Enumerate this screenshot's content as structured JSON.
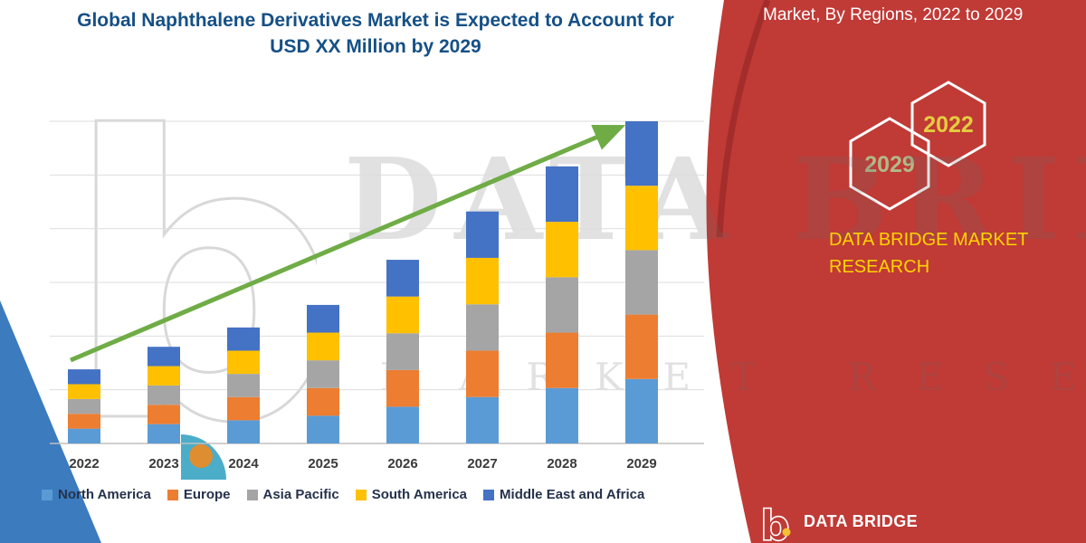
{
  "title": {
    "line1": "Global Naphthalene Derivatives Market is Expected to Account for",
    "line2": "USD XX Million by 2029"
  },
  "side_panel": {
    "heading": "Market, By Regions, 2022 to 2029",
    "hexagon_years": [
      "2029",
      "2022"
    ],
    "brand_lines": [
      "DATA BRIDGE MARKET",
      "RESEARCH"
    ],
    "footer_brand": "DATA BRIDGE",
    "logo_glyph": "b",
    "panel_color": "#C03A36",
    "accent_yellow": "#FFD400",
    "hexagon_2029_color": "#B0B98A",
    "hexagon_2022_color": "#E4CD3F"
  },
  "watermark": {
    "brand": "DATA BRIDGE",
    "sub": "MARKET RESEARCH",
    "logo_glyph": "b"
  },
  "chart_data": {
    "type": "bar",
    "stacked": true,
    "title": "Global Naphthalene Derivatives Market is Expected to Account for USD XX Million by 2029",
    "categories": [
      "2022",
      "2023",
      "2024",
      "2025",
      "2026",
      "2027",
      "2028",
      "2029"
    ],
    "series": [
      {
        "name": "North America",
        "color": "#5B9BD5",
        "values": [
          4.6,
          6,
          7.2,
          8.6,
          11.4,
          14.4,
          17.2,
          20
        ]
      },
      {
        "name": "Europe",
        "color": "#ED7D31",
        "values": [
          4.6,
          6,
          7.2,
          8.6,
          11.4,
          14.4,
          17.2,
          20
        ]
      },
      {
        "name": "Asia Pacific",
        "color": "#A5A5A5",
        "values": [
          4.6,
          6,
          7.2,
          8.6,
          11.4,
          14.4,
          17.2,
          20
        ]
      },
      {
        "name": "South America",
        "color": "#FFC000",
        "values": [
          4.6,
          6,
          7.2,
          8.6,
          11.4,
          14.4,
          17.2,
          20
        ]
      },
      {
        "name": "Middle East and Africa",
        "color": "#4472C4",
        "values": [
          4.6,
          6,
          7.2,
          8.6,
          11.4,
          14.4,
          17.2,
          20
        ]
      }
    ],
    "totals": [
      23,
      30,
      36,
      43,
      57,
      72,
      86,
      100
    ],
    "ylim": [
      0,
      100
    ],
    "value_note": "Y-axis unlabeled in source (USD XX Million); values are relative estimates with 2029 total = 100",
    "gridlines": 6,
    "y_axis_visible": false,
    "legend_position": "bottom",
    "trend_arrow": {
      "color": "#6FAC46",
      "direction": "up"
    }
  }
}
